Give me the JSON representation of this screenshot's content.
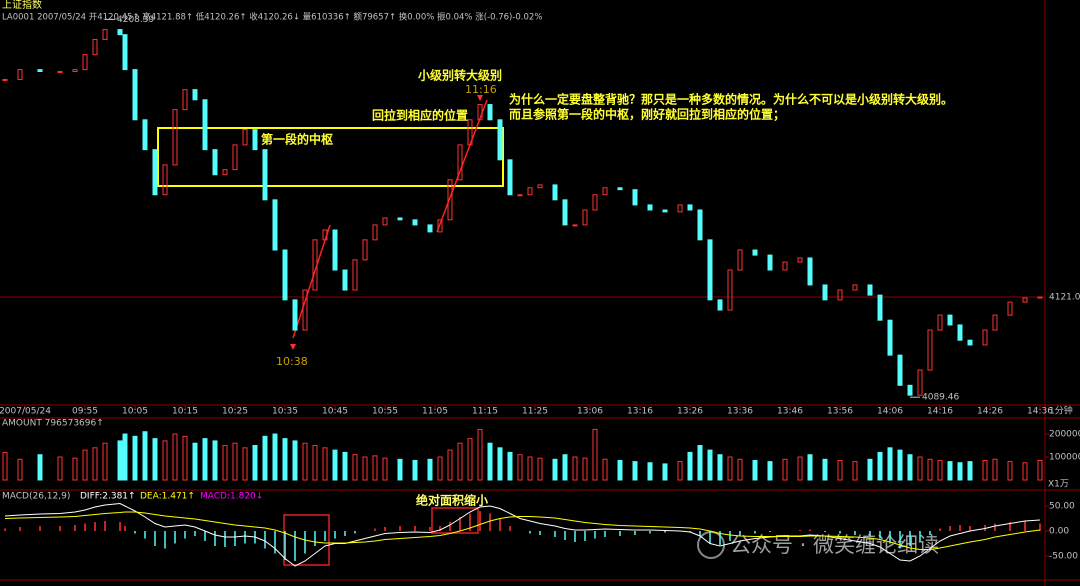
{
  "header": {
    "title": "上证指数",
    "info": "LA0001 2007/05/24 开4120.45↑ 高4121.88↑ 低4120.26↑ 收4120.26↓ 量610336↑ 额79657↑ 换0.00% 振0.04% 涨(-0.76)-0.02%"
  },
  "chart_data": [
    {
      "type": "candlestick",
      "x": [
        9,
        12,
        16,
        20,
        23,
        25,
        27,
        29,
        32,
        33,
        35,
        37,
        39,
        41,
        43,
        45,
        47,
        49,
        51,
        53,
        55,
        57,
        59,
        61,
        63,
        65,
        67,
        69,
        71,
        73,
        75,
        77,
        79,
        81,
        83,
        85,
        88,
        91,
        94,
        96,
        98,
        100,
        102,
        104,
        106,
        108,
        110,
        112,
        114,
        116,
        119,
        121,
        123,
        125,
        127,
        129,
        132,
        135,
        138,
        141,
        144,
        146,
        148,
        150,
        152,
        154,
        156,
        159,
        162,
        165,
        168,
        170,
        173,
        176,
        179,
        182,
        184,
        186,
        188,
        190,
        192,
        194,
        196,
        198,
        200,
        202,
        205,
        207,
        210,
        213,
        216
      ],
      "close": [
        4189.5,
        4192.6,
        4192,
        4192,
        4192.6,
        4197.3,
        4202.1,
        4205.2,
        4203.6,
        4192.6,
        4176.8,
        4167.4,
        4153.2,
        4162.6,
        4180,
        4186.3,
        4183.1,
        4167.4,
        4159.5,
        4161.1,
        4168.9,
        4173.7,
        4167.4,
        4151.6,
        4135.8,
        4120.1,
        4110.6,
        4123.2,
        4139,
        4142.1,
        4129.5,
        4123.2,
        4132.7,
        4139,
        4143.7,
        4145.9,
        4145.3,
        4143.7,
        4141.5,
        4145.3,
        4157.9,
        4168.9,
        4176.8,
        4181.6,
        4176.8,
        4164.2,
        4153.2,
        4153.2,
        4155.4,
        4156.3,
        4151.6,
        4143.7,
        4143.7,
        4148.4,
        4153.2,
        4155.4,
        4154.8,
        4150,
        4148.4,
        4147.8,
        4150,
        4148.4,
        4139,
        4120.1,
        4116.9,
        4129.5,
        4135.8,
        4134.2,
        4129.5,
        4132,
        4133.3,
        4124.8,
        4120.1,
        4123.2,
        4124.8,
        4121.6,
        4113.7,
        4102.7,
        4093.2,
        4090.1,
        4098,
        4110.6,
        4115.3,
        4112.2,
        4107.4,
        4105.9,
        4110.6,
        4115.3,
        4119.4,
        4120.7,
        4121
      ],
      "colors": {
        "up": "#ff3232",
        "down": "#54fcfc"
      },
      "xlim": [
        8,
        217
      ],
      "xticks": [
        {
          "value": 13,
          "label": "2007/05/24"
        },
        {
          "value": 25,
          "label": "09:55"
        },
        {
          "value": 35,
          "label": "10:05"
        },
        {
          "value": 45,
          "label": "10:15"
        },
        {
          "value": 55,
          "label": "10:25"
        },
        {
          "value": 65,
          "label": "10:35"
        },
        {
          "value": 75,
          "label": "10:45"
        },
        {
          "value": 85,
          "label": "10:55"
        },
        {
          "value": 95,
          "label": "11:05"
        },
        {
          "value": 105,
          "label": "11:15"
        },
        {
          "value": 115,
          "label": "11:25"
        },
        {
          "value": 126,
          "label": "13:06"
        },
        {
          "value": 136,
          "label": "13:16"
        },
        {
          "value": 146,
          "label": "13:26"
        },
        {
          "value": 156,
          "label": "13:36"
        },
        {
          "value": 166,
          "label": "13:46"
        },
        {
          "value": 176,
          "label": "13:56"
        },
        {
          "value": 186,
          "label": "14:06"
        },
        {
          "value": 196,
          "label": "14:16"
        },
        {
          "value": 206,
          "label": "14:26"
        },
        {
          "value": 216,
          "label": "14:36"
        }
      ],
      "x_unit": "1分钟",
      "ylim": [
        4087,
        4212
      ],
      "yticks": [
        4121.01
      ],
      "max_label": 4208.39,
      "min_label": 4089.46,
      "annotations": [
        "小级别转大级别",
        "11:16",
        "回拉到相应的位置",
        "第一段的中枢",
        "为什么一定要盘整背驰？那只是一种多数的情况。为什么不可以是小级别转大级别。",
        "而且参照第一段的中枢，刚好就回拉到相应的位置；",
        "10:38",
        "公众号 · 微笑缠论细读"
      ]
    },
    {
      "type": "volume",
      "header": "AMOUNT 796573696↑",
      "values": [
        120000,
        90000,
        110000,
        100000,
        95000,
        130000,
        140000,
        160000,
        170000,
        200000,
        190000,
        210000,
        180000,
        170000,
        200000,
        190000,
        160000,
        180000,
        170000,
        150000,
        160000,
        140000,
        150000,
        190000,
        200000,
        180000,
        170000,
        160000,
        150000,
        140000,
        130000,
        120000,
        110000,
        100000,
        105000,
        95000,
        90000,
        85000,
        90000,
        100000,
        130000,
        160000,
        180000,
        220000,
        160000,
        140000,
        120000,
        110000,
        100000,
        95000,
        90000,
        110000,
        100000,
        95000,
        220000,
        90000,
        85000,
        80000,
        75000,
        70000,
        80000,
        120000,
        150000,
        130000,
        110000,
        100000,
        90000,
        85000,
        80000,
        90000,
        100000,
        110000,
        90000,
        85000,
        80000,
        90000,
        120000,
        140000,
        130000,
        110000,
        100000,
        90000,
        85000,
        80000,
        75000,
        80000,
        85000,
        90000,
        80000,
        75000,
        85000
      ],
      "ylim": [
        0,
        261000
      ],
      "yticks": [
        100000,
        200000
      ],
      "unit_label": "X1万"
    },
    {
      "type": "macd",
      "header": "MACD(26,12,9)",
      "annotation": "绝对面积缩小",
      "series": [
        {
          "name": "DIFF:2.381↑",
          "color": "#ffffff",
          "values": [
            30,
            32,
            34,
            35,
            38,
            42,
            48,
            52,
            55,
            50,
            40,
            28,
            15,
            8,
            10,
            12,
            8,
            0,
            -8,
            -12,
            -12,
            -10,
            -12,
            -20,
            -35,
            -55,
            -70,
            -60,
            -45,
            -30,
            -25,
            -25,
            -20,
            -15,
            -10,
            -5,
            -3,
            -2,
            -3,
            2,
            12,
            25,
            38,
            48,
            50,
            45,
            35,
            25,
            20,
            15,
            10,
            5,
            2,
            2,
            3,
            4,
            3,
            2,
            2,
            1,
            0,
            -2,
            -10,
            -25,
            -30,
            -25,
            -20,
            -15,
            -12,
            -10,
            -10,
            -8,
            -10,
            -15,
            -20,
            -25,
            -32,
            -45,
            -58,
            -60,
            -50,
            -35,
            -20,
            -10,
            -5,
            0,
            5,
            10,
            15,
            20,
            22
          ]
        },
        {
          "name": "DEA:1.471↑",
          "color": "#ffff00",
          "values": [
            25,
            26,
            27,
            28,
            29,
            31,
            33,
            35,
            37,
            38,
            38,
            36,
            33,
            30,
            28,
            26,
            24,
            21,
            18,
            15,
            12,
            10,
            8,
            6,
            2,
            -4,
            -12,
            -18,
            -22,
            -24,
            -24,
            -24,
            -23,
            -22,
            -20,
            -17,
            -15,
            -13,
            -11,
            -9,
            -5,
            0,
            6,
            13,
            20,
            25,
            28,
            29,
            29,
            28,
            26,
            23,
            20,
            17,
            15,
            13,
            11,
            10,
            9,
            8,
            7,
            6,
            4,
            0,
            -5,
            -8,
            -10,
            -11,
            -11,
            -11,
            -11,
            -10,
            -10,
            -11,
            -12,
            -14,
            -17,
            -22,
            -28,
            -34,
            -37,
            -37,
            -34,
            -30,
            -26,
            -22,
            -17,
            -12,
            -7,
            -2,
            2
          ]
        },
        {
          "name": "MACD:1.820↓",
          "color": "#ff00ff",
          "values": [
            5,
            8,
            10,
            10,
            12,
            15,
            18,
            20,
            18,
            10,
            -5,
            -15,
            -30,
            -35,
            -25,
            -15,
            -10,
            -20,
            -30,
            -32,
            -30,
            -25,
            -25,
            -35,
            -45,
            -58,
            -60,
            -45,
            -30,
            -20,
            -15,
            -10,
            -5,
            0,
            5,
            8,
            10,
            10,
            8,
            10,
            18,
            28,
            35,
            40,
            35,
            25,
            10,
            0,
            -5,
            -8,
            -12,
            -18,
            -22,
            -20,
            -15,
            -12,
            -10,
            -8,
            -5,
            -3,
            0,
            -2,
            -10,
            -25,
            -28,
            -20,
            -10,
            -5,
            -2,
            0,
            2,
            3,
            -2,
            -5,
            -8,
            -10,
            -15,
            -25,
            -35,
            -30,
            -20,
            -8,
            5,
            10,
            12,
            10,
            12,
            15,
            18,
            20,
            15
          ]
        }
      ],
      "bar_colors": {
        "up": "#ff3232",
        "down": "#54fcfc"
      },
      "ylim": [
        -98,
        72
      ],
      "yticks": [
        {
          "value": 50,
          "label": "50.00"
        },
        {
          "value": 0,
          "label": "0.00"
        },
        {
          "value": -50,
          "label": "-50.00"
        }
      ]
    }
  ]
}
